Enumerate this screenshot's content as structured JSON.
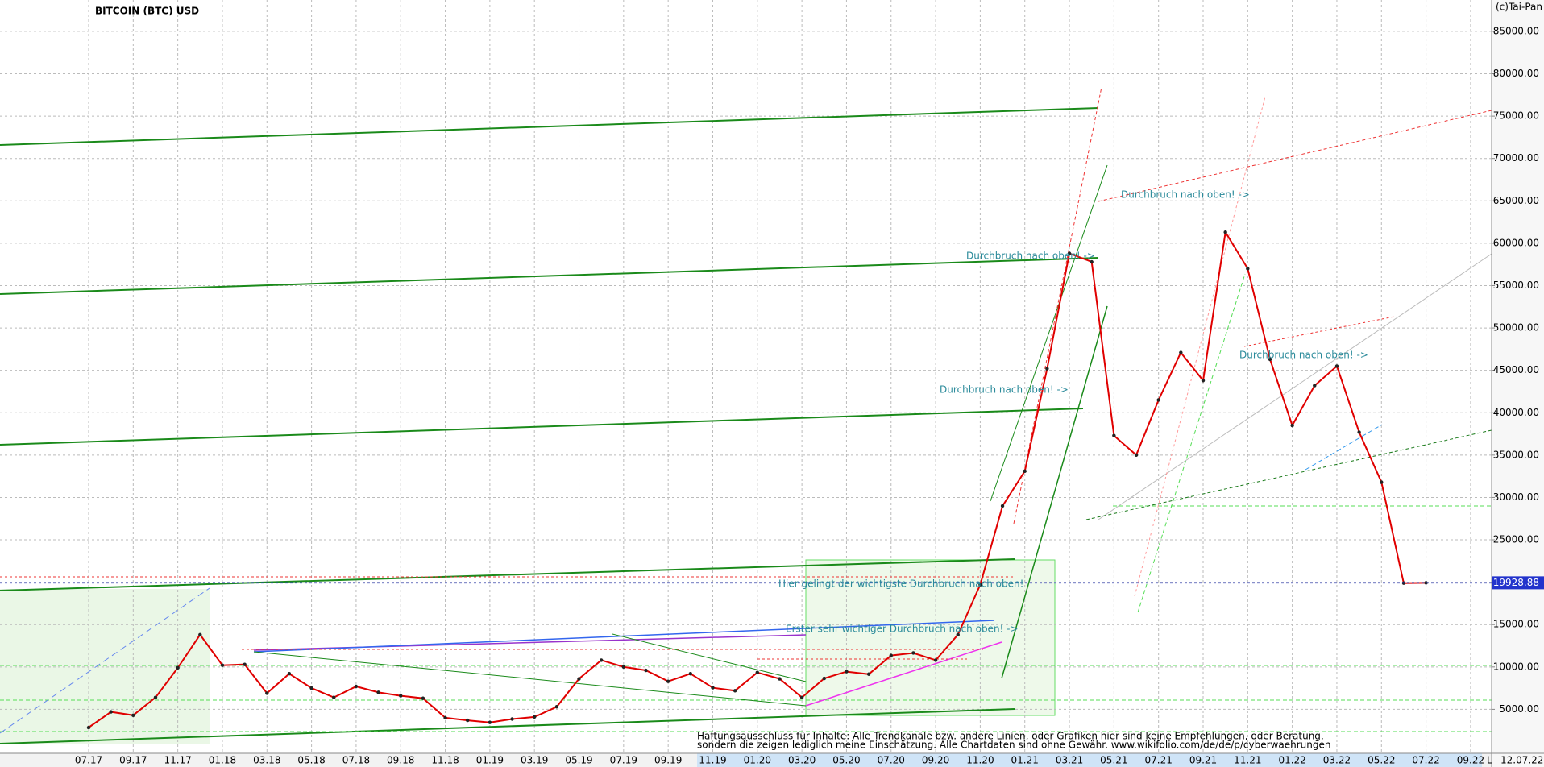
{
  "chart_data": {
    "type": "line",
    "title": "BITCOIN (BTC) USD",
    "source": "(c)Tai-Pan",
    "categories": [
      "07.17",
      null,
      "09.17",
      null,
      "11.17",
      null,
      "01.18",
      null,
      "03.18",
      null,
      "05.18",
      null,
      "07.18",
      null,
      "09.18",
      null,
      "11.18",
      null,
      "01.19",
      null,
      "03.19",
      null,
      "05.19",
      null,
      "07.19",
      null,
      "09.19",
      null,
      "11.19",
      null,
      "01.20",
      null,
      "03.20",
      null,
      "05.20",
      null,
      "07.20",
      null,
      "09.20",
      null,
      "11.20",
      null,
      "01.21",
      null,
      "03.21",
      null,
      "05.21",
      null,
      "07.21",
      null,
      "09.21",
      null,
      "11.21",
      null,
      "01.22",
      null,
      "03.22",
      null,
      "05.22",
      null,
      "07.22",
      null,
      "09.22"
    ],
    "values": [
      2850,
      4700,
      4300,
      6400,
      9900,
      13800,
      10200,
      10300,
      6900,
      9200,
      7500,
      6400,
      7700,
      7000,
      6600,
      6300,
      4000,
      3700,
      3450,
      3850,
      4100,
      5300,
      8600,
      10800,
      10000,
      9600,
      8300,
      9200,
      7550,
      7200,
      9350,
      8600,
      6400,
      8650,
      9450,
      9150,
      11350,
      11650,
      10800,
      13800,
      19700,
      29000,
      33100,
      45200,
      58800,
      57800,
      37300,
      35000,
      41500,
      47100,
      43800,
      61300,
      57000,
      46300,
      38500,
      43200,
      45500,
      37700,
      31800,
      19900,
      19928.88,
      null,
      null
    ],
    "color": "#e00000",
    "ylim": [
      0,
      88700
    ],
    "yticks": [
      {
        "value": 5000,
        "label": "5000.00"
      },
      {
        "value": 10000,
        "label": "10000.00"
      },
      {
        "value": 15000,
        "label": "15000.00"
      },
      {
        "value": 20000,
        "label": "20000.00"
      },
      {
        "value": 25000,
        "label": "25000.00"
      },
      {
        "value": 30000,
        "label": "30000.00"
      },
      {
        "value": 35000,
        "label": "35000.00"
      },
      {
        "value": 40000,
        "label": "40000.00"
      },
      {
        "value": 45000,
        "label": "45000.00"
      },
      {
        "value": 50000,
        "label": "50000.00"
      },
      {
        "value": 55000,
        "label": "55000.00"
      },
      {
        "value": 60000,
        "label": "60000.00"
      },
      {
        "value": 65000,
        "label": "65000.00"
      },
      {
        "value": 70000,
        "label": "70000.00"
      },
      {
        "value": 75000,
        "label": "75000.00"
      },
      {
        "value": 80000,
        "label": "80000.00"
      },
      {
        "value": 85000,
        "label": "85000.00"
      }
    ],
    "grid": true,
    "last_price": 19928.88,
    "annotations": [
      "Durchbruch nach oben! ->",
      "Durchbruch nach oben! ->",
      "Durchbruch nach oben! ->",
      "Durchbruch nach oben! ->",
      "Hier gelingt der wichtigste Durchbruch nach oben!",
      "Erster sehr wichtiger Durchbruch nach oben! ->"
    ],
    "disclaimer": [
      "Haftungsausschluss für Inhalte: Alle Trendkanäle bzw. andere Linien, oder Grafiken hier sind keine Empfehlungen, oder Beratung,",
      "sondern die zeigen lediglich meine  Einschätzung. Alle Chartdaten sind ohne Gewähr.  www.wikifolio.com/de/de/p/cyberwaehrungen"
    ],
    "footer_flag": "L",
    "footer_date": "12.07.22"
  }
}
